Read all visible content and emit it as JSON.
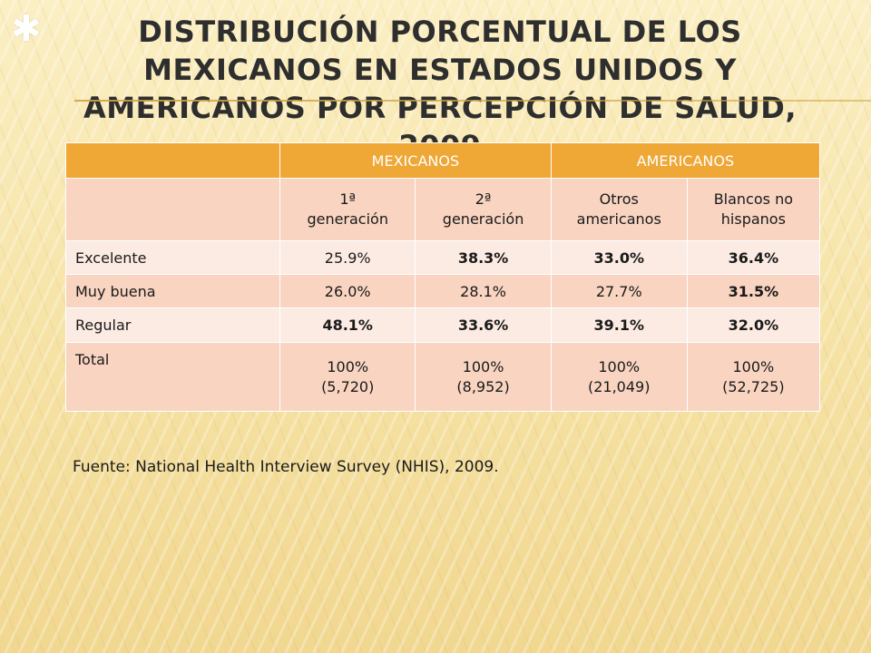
{
  "slide": {
    "star_glyph": "✱",
    "title": "Distribución porcentual de los mexicanos en Estados Unidos y americanos por percepción de salud, 2009",
    "source": "Fuente: National Health Interview Survey (NHIS), 2009."
  },
  "table": {
    "group_headers": [
      "MEXICANOS",
      "AMERICANOS"
    ],
    "sub_headers": [
      [
        "1ª",
        "generación"
      ],
      [
        "2ª",
        "generación"
      ],
      [
        "Otros",
        "americanos"
      ],
      [
        "Blancos no",
        "hispanos"
      ]
    ],
    "rows": [
      {
        "label": "Excelente",
        "values": [
          "25.9%",
          "38.3%",
          "33.0%",
          "36.4%"
        ]
      },
      {
        "label": "Muy buena",
        "values": [
          "26.0%",
          "28.1%",
          "27.7%",
          "31.5%"
        ]
      },
      {
        "label": "Regular",
        "values": [
          "48.1%",
          "33.6%",
          "39.1%",
          "32.0%"
        ]
      },
      {
        "label": "Total",
        "values": [
          [
            "100%",
            "(5,720)"
          ],
          [
            "100%",
            "(8,952)"
          ],
          [
            "100%",
            "(21,049)"
          ],
          [
            "100%",
            "(52,725)"
          ]
        ]
      }
    ],
    "colors": {
      "header": "#efa736",
      "row_dark": "#f8d4c1",
      "row_light": "#fcebe3"
    }
  }
}
